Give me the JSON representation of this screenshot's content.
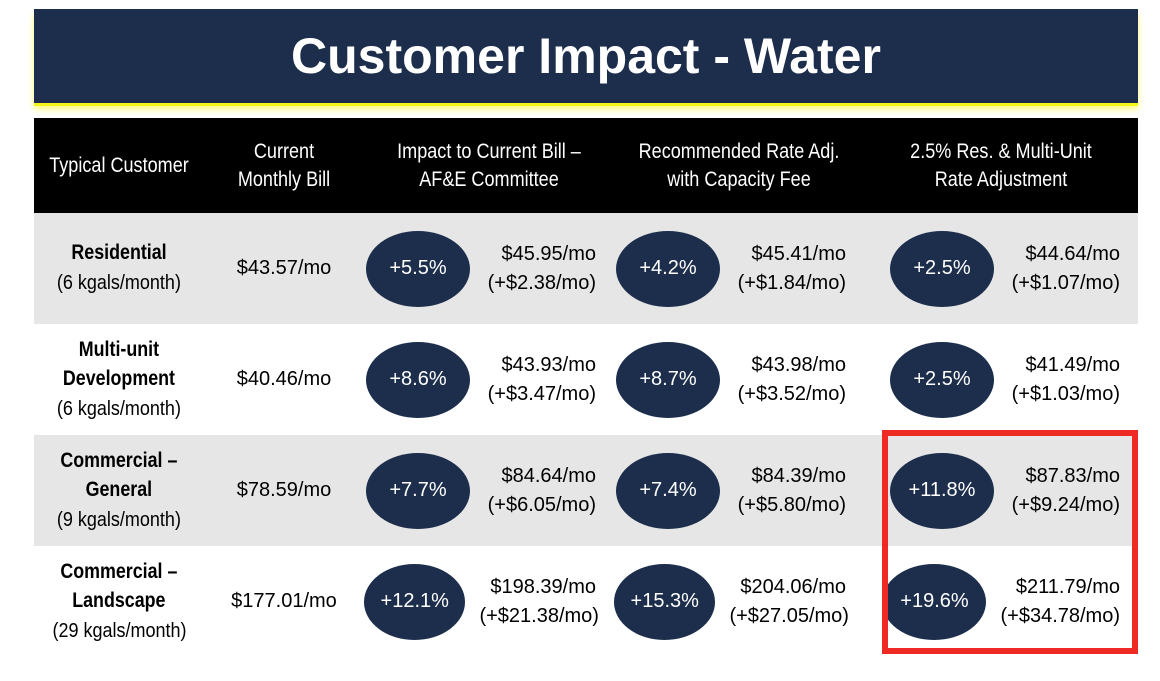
{
  "title": "Customer Impact - Water",
  "columns": [
    "Typical Customer",
    "Current\nMonthly Bill",
    "Impact to Current Bill –\nAF&E Committee",
    "Recommended Rate Adj.\nwith Capacity Fee",
    "2.5% Res. & Multi-Unit\nRate Adjustment"
  ],
  "rows": [
    {
      "customer": "Residential",
      "usage": "(6 kgals/month)",
      "current_bill": "$43.57/mo",
      "afe": {
        "pct": "+5.5%",
        "bill": "$45.95/mo",
        "delta": "(+$2.38/mo)"
      },
      "recommended": {
        "pct": "+4.2%",
        "bill": "$45.41/mo",
        "delta": "(+$1.84/mo)"
      },
      "res_adj": {
        "pct": "+2.5%",
        "bill": "$44.64/mo",
        "delta": "(+$1.07/mo)"
      }
    },
    {
      "customer": "Multi-unit\nDevelopment",
      "usage": "(6 kgals/month)",
      "current_bill": "$40.46/mo",
      "afe": {
        "pct": "+8.6%",
        "bill": "$43.93/mo",
        "delta": "(+$3.47/mo)"
      },
      "recommended": {
        "pct": "+8.7%",
        "bill": "$43.98/mo",
        "delta": "(+$3.52/mo)"
      },
      "res_adj": {
        "pct": "+2.5%",
        "bill": "$41.49/mo",
        "delta": "(+$1.03/mo)"
      }
    },
    {
      "customer": "Commercial –\nGeneral",
      "usage": "(9 kgals/month)",
      "current_bill": "$78.59/mo",
      "afe": {
        "pct": "+7.7%",
        "bill": "$84.64/mo",
        "delta": "(+$6.05/mo)"
      },
      "recommended": {
        "pct": "+7.4%",
        "bill": "$84.39/mo",
        "delta": "(+$5.80/mo)"
      },
      "res_adj": {
        "pct": "+11.8%",
        "bill": "$87.83/mo",
        "delta": "(+$9.24/mo)"
      }
    },
    {
      "customer": "Commercial –\nLandscape",
      "usage": "(29 kgals/month)",
      "current_bill": "$177.01/mo",
      "afe": {
        "pct": "+12.1%",
        "bill": "$198.39/mo",
        "delta": "(+$21.38/mo)"
      },
      "recommended": {
        "pct": "+15.3%",
        "bill": "$204.06/mo",
        "delta": "(+$27.05/mo)"
      },
      "res_adj": {
        "pct": "+19.6%",
        "bill": "$211.79/mo",
        "delta": "(+$34.78/mo)"
      }
    }
  ],
  "colors": {
    "banner": "#1c2e4b",
    "banner_glow": "#f5f51a",
    "header_bg": "#000000",
    "row_alt": "#e6e6e6",
    "bubble": "#1c2e4b",
    "highlight": "#ee2a24"
  }
}
